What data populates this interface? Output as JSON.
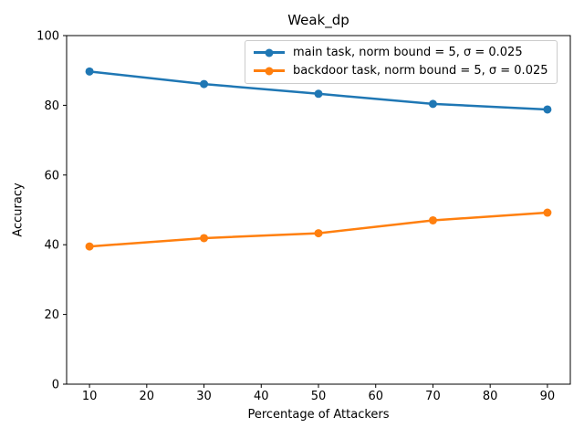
{
  "chart_data": {
    "type": "line",
    "title": "Weak_dp",
    "xlabel": "Percentage of Attackers",
    "ylabel": "Accuracy",
    "x": [
      10,
      30,
      50,
      70,
      90
    ],
    "series": [
      {
        "name": "main task, norm bound = 5, σ = 0.025",
        "color": "#1f77b4",
        "values": [
          89.7,
          86.1,
          83.3,
          80.4,
          78.8
        ]
      },
      {
        "name": "backdoor task, norm bound = 5, σ = 0.025",
        "color": "#ff7f0e",
        "values": [
          39.5,
          41.9,
          43.3,
          47.0,
          49.2
        ]
      }
    ],
    "xlim": [
      6,
      94
    ],
    "ylim": [
      0,
      100
    ],
    "xticks": [
      10,
      20,
      30,
      40,
      50,
      60,
      70,
      80,
      90
    ],
    "yticks": [
      0,
      20,
      40,
      60,
      80,
      100
    ],
    "grid": false,
    "legend_position": "upper center",
    "legend_border_color": "#cccccc",
    "axis_color": "#000000",
    "background": "#ffffff"
  }
}
